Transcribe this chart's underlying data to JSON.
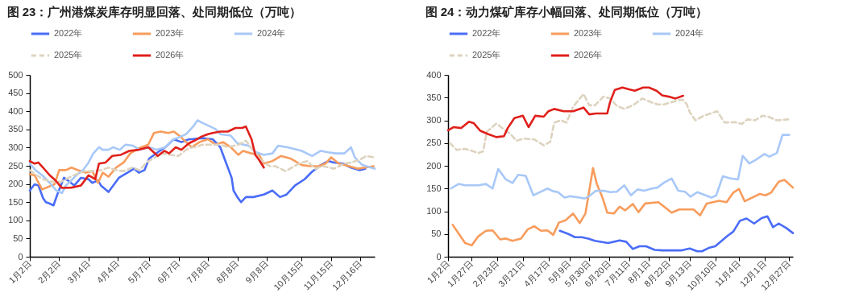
{
  "chart_data": [
    {
      "type": "line",
      "title": "图 23：广州港煤炭库存明显回落、处同期低位（万吨）",
      "legend": "top",
      "xlim": [
        "--01-02",
        "--12-31"
      ],
      "ylim": [
        0,
        500
      ],
      "yticks": [
        0,
        50,
        100,
        150,
        200,
        250,
        300,
        350,
        400,
        450,
        500
      ],
      "xticks": [
        {
          "value": "--01-02",
          "label": "1月2日"
        },
        {
          "value": "--02-02",
          "label": "2月2日"
        },
        {
          "value": "--03-04",
          "label": "3月4日"
        },
        {
          "value": "--04-04",
          "label": "4月4日"
        },
        {
          "value": "--05-07",
          "label": "5月7日"
        },
        {
          "value": "--06-07",
          "label": "6月7日"
        },
        {
          "value": "--07-08",
          "label": "7月8日"
        },
        {
          "value": "--08-08",
          "label": "8月8日"
        },
        {
          "value": "--09-08",
          "label": "9月8日"
        },
        {
          "value": "--10-15",
          "label": "10月15日"
        },
        {
          "value": "--11-15",
          "label": "11月15日"
        },
        {
          "value": "--12-16",
          "label": "12月16日"
        }
      ],
      "series": [
        {
          "name": "2022年",
          "color": "#4a6cf7",
          "x": [
            "--01-02",
            "--01-07",
            "--01-11",
            "--01-16",
            "--01-19",
            "--01-23",
            "--01-27",
            "--01-31",
            "--02-07",
            "--02-11",
            "--02-18",
            "--02-25",
            "--03-04",
            "--03-08",
            "--03-14",
            "--03-17",
            "--03-25",
            "--03-31",
            "--04-05",
            "--04-14",
            "--04-21",
            "--04-26",
            "--05-02",
            "--05-07",
            "--05-16",
            "--05-24",
            "--06-02",
            "--06-10",
            "--06-18",
            "--06-21",
            "--07-02",
            "--07-13",
            "--07-21",
            "--07-27",
            "--08-02",
            "--08-04",
            "--08-08",
            "--08-12",
            "--08-17",
            "--08-25",
            "--09-05",
            "--09-14",
            "--09-22",
            "--09-29",
            "--10-08",
            "--10-18",
            "--10-26",
            "--11-04",
            "--11-12",
            "--11-18",
            "--11-27",
            "--12-06",
            "--12-15",
            "--12-21"
          ],
          "values": [
            182,
            199,
            196,
            161,
            150,
            146,
            141,
            171,
            217,
            210,
            196,
            217,
            213,
            203,
            210,
            196,
            178,
            199,
            217,
            231,
            242,
            231,
            238,
            270,
            287,
            301,
            323,
            315,
            323,
            323,
            326,
            323,
            301,
            259,
            217,
            182,
            164,
            150,
            164,
            164,
            171,
            182,
            164,
            171,
            196,
            213,
            234,
            252,
            263,
            259,
            256,
            245,
            238,
            242
          ]
        },
        {
          "name": "2023年",
          "color": "#f89c5c",
          "x": [
            "--01-02",
            "--01-07",
            "--01-15",
            "--01-28",
            "--02-02",
            "--02-09",
            "--02-15",
            "--02-22",
            "--03-01",
            "--03-08",
            "--03-14",
            "--03-19",
            "--03-25",
            "--04-02",
            "--04-10",
            "--04-17",
            "--04-26",
            "--05-06",
            "--05-12",
            "--05-19",
            "--05-27",
            "--06-02",
            "--06-09",
            "--06-15",
            "--06-21",
            "--06-29",
            "--07-08",
            "--07-16",
            "--07-24",
            "--08-01",
            "--08-09",
            "--08-14",
            "--08-23",
            "--08-31",
            "--09-05",
            "--09-14",
            "--09-23",
            "--10-03",
            "--10-15",
            "--10-24",
            "--11-02",
            "--11-09",
            "--11-15",
            "--11-23",
            "--12-04",
            "--12-13",
            "--12-21",
            "--12-30"
          ],
          "values": [
            227,
            224,
            185,
            199,
            238,
            238,
            245,
            238,
            231,
            235,
            203,
            231,
            220,
            245,
            259,
            284,
            298,
            308,
            340,
            344,
            340,
            344,
            330,
            315,
            301,
            315,
            323,
            308,
            315,
            301,
            280,
            291,
            284,
            280,
            256,
            263,
            277,
            270,
            252,
            249,
            249,
            256,
            273,
            256,
            249,
            242,
            245,
            249
          ]
        },
        {
          "name": "2024年",
          "color": "#a8c8f8",
          "x": [
            "--01-02",
            "--01-08",
            "--01-15",
            "--01-23",
            "--01-30",
            "--02-05",
            "--02-09",
            "--02-15",
            "--02-20",
            "--02-27",
            "--03-04",
            "--03-09",
            "--03-15",
            "--03-19",
            "--03-25",
            "--03-30",
            "--04-06",
            "--04-12",
            "--04-20",
            "--04-27",
            "--05-07",
            "--05-15",
            "--05-24",
            "--06-02",
            "--06-09",
            "--06-15",
            "--06-23",
            "--06-27",
            "--07-02",
            "--07-08",
            "--07-16",
            "--07-21",
            "--08-01",
            "--08-08",
            "--08-20",
            "--08-28",
            "--09-05",
            "--09-14",
            "--09-20",
            "--09-30",
            "--10-15",
            "--10-26",
            "--11-04",
            "--11-12",
            "--11-20",
            "--11-29",
            "--12-06",
            "--12-10",
            "--12-18",
            "--12-27",
            "--12-31"
          ],
          "values": [
            256,
            238,
            224,
            203,
            182,
            175,
            196,
            210,
            224,
            238,
            259,
            284,
            301,
            294,
            294,
            301,
            294,
            308,
            305,
            294,
            301,
            294,
            301,
            323,
            330,
            337,
            360,
            375,
            368,
            361,
            351,
            337,
            333,
            312,
            305,
            287,
            280,
            284,
            305,
            301,
            291,
            277,
            291,
            287,
            284,
            284,
            301,
            273,
            252,
            245,
            242
          ]
        },
        {
          "name": "2025年",
          "color": "#ddd3bf",
          "line_style": "dashed",
          "x": [
            "--01-02",
            "--01-09",
            "--01-16",
            "--01-26",
            "--02-04",
            "--02-12",
            "--02-20",
            "--02-28",
            "--03-08",
            "--03-17",
            "--03-25",
            "--04-02",
            "--04-10",
            "--04-19",
            "--04-27",
            "--05-04",
            "--05-11",
            "--05-21",
            "--05-29",
            "--06-07",
            "--06-15",
            "--06-21",
            "--06-25",
            "--07-02",
            "--07-10",
            "--07-21",
            "--07-29",
            "--08-09",
            "--08-17",
            "--08-23",
            "--09-02",
            "--09-11",
            "--09-17",
            "--09-28",
            "--10-12",
            "--10-21",
            "--10-29",
            "--11-07",
            "--11-18",
            "--11-29",
            "--12-06",
            "--12-15",
            "--12-22",
            "--12-31"
          ],
          "values": [
            238,
            224,
            213,
            206,
            206,
            217,
            227,
            235,
            235,
            238,
            245,
            238,
            235,
            245,
            238,
            259,
            270,
            284,
            280,
            277,
            294,
            301,
            301,
            308,
            308,
            308,
            301,
            308,
            319,
            298,
            266,
            249,
            249,
            235,
            256,
            263,
            242,
            249,
            242,
            256,
            259,
            266,
            277,
            273
          ]
        },
        {
          "name": "2026年",
          "color": "#e0201b",
          "x": [
            "--01-02",
            "--01-07",
            "--01-11",
            "--01-16",
            "--01-23",
            "--01-29",
            "--02-05",
            "--02-15",
            "--02-25",
            "--03-01",
            "--03-04",
            "--03-11",
            "--03-15",
            "--03-22",
            "--03-29",
            "--04-07",
            "--04-16",
            "--04-26",
            "--05-06",
            "--05-16",
            "--05-23",
            "--05-28",
            "--06-04",
            "--06-10",
            "--06-18",
            "--06-23",
            "--07-01",
            "--07-08",
            "--07-13",
            "--07-21",
            "--07-29",
            "--08-06",
            "--08-13",
            "--08-17",
            "--08-23",
            "--08-27",
            "--08-31",
            "--09-05"
          ],
          "values": [
            263,
            256,
            259,
            245,
            224,
            210,
            189,
            190,
            196,
            213,
            224,
            213,
            256,
            259,
            277,
            280,
            291,
            294,
            301,
            277,
            291,
            284,
            301,
            294,
            312,
            318,
            330,
            337,
            340,
            344,
            344,
            354,
            354,
            358,
            323,
            280,
            266,
            245
          ]
        }
      ]
    },
    {
      "type": "line",
      "title": "图 24：动力煤矿库存小幅回落、处同期低位（万吨）",
      "legend": "top",
      "xlim": [
        "--01-02",
        "--12-31"
      ],
      "ylim": [
        0,
        400
      ],
      "yticks": [
        0,
        50,
        100,
        150,
        200,
        250,
        300,
        350,
        400
      ],
      "xticks": [
        {
          "value": "--01-02",
          "label": "1月2日"
        },
        {
          "value": "--01-27",
          "label": "1月27日"
        },
        {
          "value": "--02-23",
          "label": "2月23日"
        },
        {
          "value": "--03-21",
          "label": "3月21日"
        },
        {
          "value": "--04-17",
          "label": "4月17日"
        },
        {
          "value": "--05-09",
          "label": "5月9日"
        },
        {
          "value": "--05-30",
          "label": "5月30日"
        },
        {
          "value": "--06-20",
          "label": "6月20日"
        },
        {
          "value": "--07-11",
          "label": "7月11日"
        },
        {
          "value": "--08-01",
          "label": "8月1日"
        },
        {
          "value": "--08-22",
          "label": "8月22日"
        },
        {
          "value": "--09-13",
          "label": "9月13日"
        },
        {
          "value": "--10-10",
          "label": "10月10日"
        },
        {
          "value": "--11-04",
          "label": "11月4日"
        },
        {
          "value": "--12-01",
          "label": "12月1日"
        },
        {
          "value": "--12-27",
          "label": "12月27日"
        }
      ],
      "series": [
        {
          "name": "2022年",
          "color": "#4a6cf7",
          "x": [
            "--04-29",
            "--05-08",
            "--05-15",
            "--05-22",
            "--05-29",
            "--06-05",
            "--06-19",
            "--07-01",
            "--07-08",
            "--07-15",
            "--07-22",
            "--07-29",
            "--08-07",
            "--08-15",
            "--09-05",
            "--09-13",
            "--09-21",
            "--09-26",
            "--10-04",
            "--10-10",
            "--10-23",
            "--10-29",
            "--11-05",
            "--11-12",
            "--11-20",
            "--11-28",
            "--12-04",
            "--12-10",
            "--12-16",
            "--12-24",
            "--12-31"
          ],
          "values": [
            57,
            50,
            43,
            43,
            40,
            35,
            30,
            36,
            33,
            17,
            23,
            23,
            15,
            14,
            14,
            18,
            12,
            12,
            20,
            23,
            46,
            55,
            79,
            84,
            73,
            85,
            89,
            65,
            73,
            63,
            52
          ]
        },
        {
          "name": "2023年",
          "color": "#f89c5c",
          "x": [
            "--01-07",
            "--01-20",
            "--01-27",
            "--02-03",
            "--02-11",
            "--02-18",
            "--02-26",
            "--03-03",
            "--03-10",
            "--03-19",
            "--03-26",
            "--04-02",
            "--04-09",
            "--04-16",
            "--04-22",
            "--04-28",
            "--05-05",
            "--05-13",
            "--05-20",
            "--05-26",
            "--06-03",
            "--06-07",
            "--06-13",
            "--06-18",
            "--06-25",
            "--07-01",
            "--07-07",
            "--07-15",
            "--07-21",
            "--07-28",
            "--08-11",
            "--08-25",
            "--09-02",
            "--09-17",
            "--09-24",
            "--10-01",
            "--10-14",
            "--10-22",
            "--10-29",
            "--11-04",
            "--11-10",
            "--11-26",
            "--12-02",
            "--12-08",
            "--12-16",
            "--12-22",
            "--12-31"
          ],
          "values": [
            70,
            30,
            25,
            45,
            57,
            58,
            38,
            40,
            35,
            40,
            60,
            67,
            57,
            58,
            48,
            75,
            80,
            95,
            74,
            95,
            195,
            160,
            130,
            97,
            95,
            110,
            102,
            116,
            98,
            117,
            120,
            97,
            104,
            104,
            91,
            117,
            123,
            120,
            141,
            149,
            122,
            138,
            135,
            141,
            165,
            169,
            152
          ]
        },
        {
          "name": "2024年",
          "color": "#a8c8f8",
          "x": [
            "--01-05",
            "--01-13",
            "--01-20",
            "--02-03",
            "--02-11",
            "--02-18",
            "--02-24",
            "--03-03",
            "--03-10",
            "--03-16",
            "--03-24",
            "--04-01",
            "--04-06",
            "--04-16",
            "--04-22",
            "--04-27",
            "--05-04",
            "--05-10",
            "--05-20",
            "--05-25",
            "--05-30",
            "--06-06",
            "--06-14",
            "--06-21",
            "--06-28",
            "--07-06",
            "--07-13",
            "--07-20",
            "--07-27",
            "--08-04",
            "--08-10",
            "--08-17",
            "--08-25",
            "--09-01",
            "--09-08",
            "--09-14",
            "--09-21",
            "--10-06",
            "--10-11",
            "--10-18",
            "--10-26",
            "--11-03",
            "--11-08",
            "--11-15",
            "--11-21",
            "--12-01",
            "--12-06",
            "--12-14",
            "--12-20",
            "--12-27"
          ],
          "values": [
            150,
            160,
            157,
            157,
            160,
            150,
            193,
            170,
            162,
            180,
            178,
            135,
            140,
            150,
            144,
            142,
            130,
            133,
            130,
            128,
            133,
            145,
            145,
            142,
            143,
            157,
            135,
            148,
            145,
            150,
            152,
            163,
            172,
            145,
            143,
            132,
            142,
            130,
            135,
            177,
            172,
            170,
            222,
            205,
            212,
            226,
            220,
            228,
            268,
            268
          ]
        },
        {
          "name": "2025年",
          "color": "#ddd3bf",
          "line_style": "dashed",
          "x": [
            "--01-04",
            "--01-11",
            "--01-20",
            "--01-27",
            "--02-03",
            "--02-08",
            "--02-12",
            "--02-22",
            "--03-01",
            "--03-08",
            "--03-14",
            "--03-22",
            "--04-02",
            "--04-12",
            "--04-19",
            "--04-23",
            "--04-30",
            "--05-06",
            "--05-13",
            "--05-24",
            "--05-30",
            "--06-05",
            "--06-14",
            "--06-21",
            "--06-28",
            "--07-06",
            "--07-15",
            "--07-25",
            "--08-03",
            "--08-10",
            "--08-17",
            "--08-25",
            "--09-02",
            "--09-06",
            "--09-10",
            "--09-13",
            "--09-19",
            "--09-28",
            "--10-12",
            "--10-20",
            "--10-31",
            "--11-07",
            "--11-13",
            "--11-21",
            "--11-29",
            "--12-06",
            "--12-14",
            "--12-26"
          ],
          "values": [
            250,
            235,
            237,
            233,
            228,
            232,
            275,
            293,
            280,
            270,
            255,
            260,
            258,
            245,
            253,
            295,
            300,
            295,
            330,
            358,
            333,
            333,
            352,
            348,
            332,
            325,
            333,
            348,
            340,
            335,
            335,
            340,
            345,
            345,
            335,
            318,
            300,
            310,
            320,
            295,
            296,
            292,
            302,
            300,
            310,
            307,
            300,
            302
          ]
        },
        {
          "name": "2026年",
          "color": "#e0201b",
          "x": [
            "--01-02",
            "--01-08",
            "--01-16",
            "--01-24",
            "--01-29",
            "--02-05",
            "--02-13",
            "--02-22",
            "--03-01",
            "--03-05",
            "--03-12",
            "--03-21",
            "--03-27",
            "--04-03",
            "--04-12",
            "--04-17",
            "--04-23",
            "--05-03",
            "--05-13",
            "--05-24",
            "--05-30",
            "--06-06",
            "--06-18",
            "--06-21",
            "--06-26",
            "--07-04",
            "--07-11",
            "--07-17",
            "--07-26",
            "--08-01",
            "--08-09",
            "--08-15",
            "--08-22",
            "--08-29",
            "--09-06"
          ],
          "values": [
            278,
            285,
            283,
            297,
            294,
            277,
            270,
            263,
            265,
            283,
            305,
            310,
            285,
            310,
            308,
            320,
            325,
            320,
            320,
            328,
            313,
            315,
            315,
            340,
            367,
            372,
            368,
            365,
            372,
            372,
            365,
            355,
            352,
            348,
            354
          ]
        }
      ]
    }
  ]
}
